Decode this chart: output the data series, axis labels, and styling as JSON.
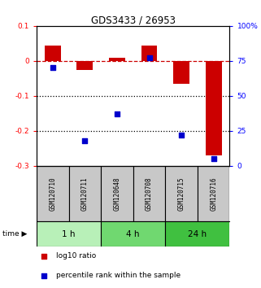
{
  "title": "GDS3433 / 26953",
  "samples": [
    "GSM120710",
    "GSM120711",
    "GSM120648",
    "GSM120708",
    "GSM120715",
    "GSM120716"
  ],
  "log10_ratio": [
    0.045,
    -0.025,
    0.008,
    0.045,
    -0.065,
    -0.27
  ],
  "percentile_rank": [
    70,
    18,
    37,
    77,
    22,
    5
  ],
  "groups": [
    {
      "label": "1 h",
      "indices": [
        0,
        1
      ],
      "color": "#b8f0b8"
    },
    {
      "label": "4 h",
      "indices": [
        2,
        3
      ],
      "color": "#70d870"
    },
    {
      "label": "24 h",
      "indices": [
        4,
        5
      ],
      "color": "#40c040"
    }
  ],
  "ylim_left": [
    -0.3,
    0.1
  ],
  "ylim_right": [
    0,
    100
  ],
  "yticks_left": [
    0.1,
    0,
    -0.1,
    -0.2,
    -0.3
  ],
  "yticks_right": [
    100,
    75,
    50,
    25,
    0
  ],
  "bar_color": "#cc0000",
  "dot_color": "#0000cc",
  "dashed_color": "#cc0000",
  "dotted_color": "#000000",
  "background_color": "#ffffff",
  "label_bg_color": "#c8c8c8",
  "bar_width": 0.5,
  "dot_size": 18,
  "legend_bar_label": "log10 ratio",
  "legend_dot_label": "percentile rank within the sample",
  "time_label": "time"
}
